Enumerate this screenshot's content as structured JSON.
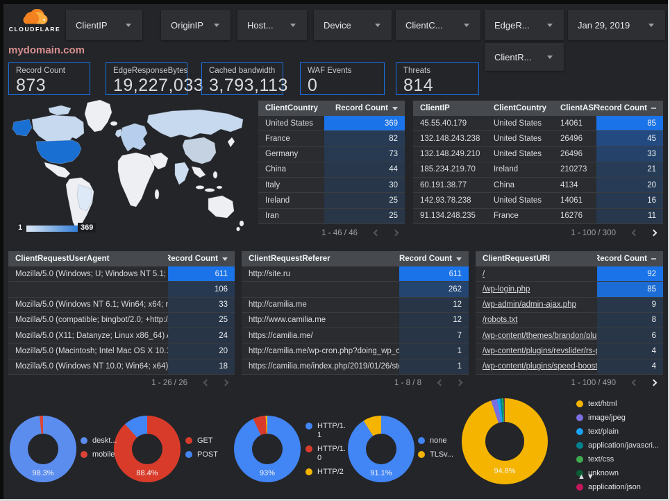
{
  "header": {
    "brand": "CLOUDFLARE",
    "filters": [
      {
        "label": "ClientIP"
      },
      {
        "label": "OriginIP"
      },
      {
        "label": "Host..."
      },
      {
        "label": "Device"
      },
      {
        "label": "ClientC..."
      },
      {
        "label": "EdgeR..."
      }
    ],
    "filter_row2": {
      "label": "ClientR..."
    },
    "date_filter": {
      "label": "Jan 29, 2019"
    }
  },
  "page_title": "mydomain.com",
  "scorecards": [
    {
      "label": "Record Count",
      "value": "873"
    },
    {
      "label": "EdgeResponseBytes",
      "value": "19,227,033"
    },
    {
      "label": "Cached bandwidth",
      "value": "3,793,113"
    },
    {
      "label": "WAF Events",
      "value": "0"
    },
    {
      "label": "Threats",
      "value": "814"
    }
  ],
  "map": {
    "legend_min": "1",
    "legend_max": "369",
    "region_colors": {
      "no_data": "#edeff2",
      "low": "#c6d9ee",
      "europe": "#b7cfec",
      "brazil": "#dde9f6",
      "china": "#c5d2e2",
      "india": "#cfdff2",
      "max": "#1a6fd2"
    }
  },
  "tables": {
    "country": {
      "headers": [
        "ClientCountry",
        "Record Count"
      ],
      "sort_indicator": "caret",
      "rows": [
        [
          "United States",
          369
        ],
        [
          "France",
          82
        ],
        [
          "Germany",
          73
        ],
        [
          "China",
          44
        ],
        [
          "Italy",
          30
        ],
        [
          "Ireland",
          25
        ],
        [
          "Iran",
          25
        ]
      ],
      "pagination": {
        "label": "1 - 46 / 46",
        "prev_enabled": false,
        "next_enabled": false
      }
    },
    "clientip": {
      "headers": [
        "ClientIP",
        "ClientCountry",
        "ClientASN",
        "Record Count"
      ],
      "sort_indicator": "dash",
      "rows": [
        [
          "45.55.40.179",
          "United States",
          "14061",
          85
        ],
        [
          "132.148.243.238",
          "United States",
          "26496",
          45
        ],
        [
          "132.148.249.210",
          "United States",
          "26496",
          33
        ],
        [
          "185.234.219.70",
          "Ireland",
          "210273",
          21
        ],
        [
          "60.191.38.77",
          "China",
          "4134",
          20
        ],
        [
          "142.93.78.238",
          "United States",
          "14061",
          16
        ],
        [
          "91.134.248.235",
          "France",
          "16276",
          11
        ]
      ],
      "pagination": {
        "label": "1 - 100 / 300",
        "prev_enabled": false,
        "next_enabled": true
      }
    },
    "useragent": {
      "headers": [
        "ClientRequestUserAgent",
        "Record Count"
      ],
      "sort_indicator": "caret",
      "rows": [
        [
          "Mozilla/5.0 (Windows; U; Windows NT 5.1; en-U...",
          611
        ],
        [
          "",
          106
        ],
        [
          "Mozilla/5.0 (Windows NT 6.1; Win64; x64; rv:64...",
          33
        ],
        [
          "Mozilla/5.0 (compatible; bingbot/2.0; +http://w...",
          25
        ],
        [
          "Mozilla/5.0 (X11; Datanyze; Linux x86_64) Appl...",
          24
        ],
        [
          "Mozilla/5.0 (Macintosh; Intel Mac OS X 10.11; r...",
          20
        ],
        [
          "Mozilla/5.0 (Windows NT 10.0; Win64; x64) App...",
          18
        ]
      ],
      "pagination": {
        "label": "1 - 26 / 26",
        "prev_enabled": false,
        "next_enabled": false
      }
    },
    "referer": {
      "headers": [
        "ClientRequestReferer",
        "Record Count"
      ],
      "sort_indicator": "caret",
      "rows": [
        [
          "http://site.ru",
          611
        ],
        [
          "",
          262
        ],
        [
          "http://camilia.me",
          12
        ],
        [
          "http://www.camilia.me",
          12
        ],
        [
          "https://camilia.me/",
          7
        ],
        [
          "http://camilia.me/wp-cron.php?doing_wp_cron...",
          1
        ],
        [
          "https://camilia.me/index.php/2019/01/26/stor...",
          1
        ]
      ],
      "pagination": {
        "label": "1 - 8 / 8",
        "prev_enabled": false,
        "next_enabled": false
      }
    },
    "uri": {
      "headers": [
        "ClientRequestURI",
        "Record Count"
      ],
      "sort_indicator": "dash",
      "links": true,
      "rows": [
        [
          "/",
          92
        ],
        [
          "/wp-login.php",
          85
        ],
        [
          "/wp-admin/admin-ajax.php",
          9
        ],
        [
          "/robots.txt",
          8
        ],
        [
          "/wp-content/themes/brandon/plu...",
          6
        ],
        [
          "/wp-content/plugins/revslider/rs-p...",
          4
        ],
        [
          "/wp-content/plugins/speed-booste...",
          4
        ]
      ],
      "pagination": {
        "label": "1 - 100 / 490",
        "prev_enabled": false,
        "next_enabled": true
      }
    }
  },
  "donuts": [
    {
      "pct_label": "98.3%",
      "slices": [
        {
          "label": "deskt...",
          "value": 98.3,
          "color": "#5b8def"
        },
        {
          "label": "mobile",
          "value": 1.7,
          "color": "#dc4437"
        }
      ]
    },
    {
      "pct_label": "88.4%",
      "slices": [
        {
          "label": "GET",
          "value": 88.4,
          "color": "#d93b2b"
        },
        {
          "label": "POST",
          "value": 11.6,
          "color": "#4285f4"
        }
      ]
    },
    {
      "pct_label": "93%",
      "slices": [
        {
          "label": "HTTP/1.1",
          "value": 93,
          "color": "#4285f4"
        },
        {
          "label": "HTTP/1.0",
          "value": 6.2,
          "color": "#d93b2b"
        },
        {
          "label": "HTTP/2",
          "value": 0.8,
          "color": "#f4b400"
        }
      ]
    },
    {
      "pct_label": "91.1%",
      "slices": [
        {
          "label": "none",
          "value": 91.1,
          "color": "#4285f4"
        },
        {
          "label": "TLSv...",
          "value": 8.9,
          "color": "#f4b400"
        }
      ]
    },
    {
      "pct_label": "94.8%",
      "slices": [
        {
          "label": "text/html",
          "value": 94.8,
          "color": "#f4b400"
        },
        {
          "label": "image/jpeg",
          "value": 2.3,
          "color": "#7a6fe0"
        },
        {
          "label": "text/plain",
          "value": 1.1,
          "color": "#1aa3f5"
        },
        {
          "label": "application/javascri...",
          "value": 0.8,
          "color": "#00838f"
        },
        {
          "label": "text/css",
          "value": 0.5,
          "color": "#3fa94d"
        },
        {
          "label": "unknown",
          "value": 0.3,
          "color": "#0b5d36"
        },
        {
          "label": "application/json",
          "value": 0.2,
          "color": "#c2185b"
        }
      ]
    }
  ]
}
